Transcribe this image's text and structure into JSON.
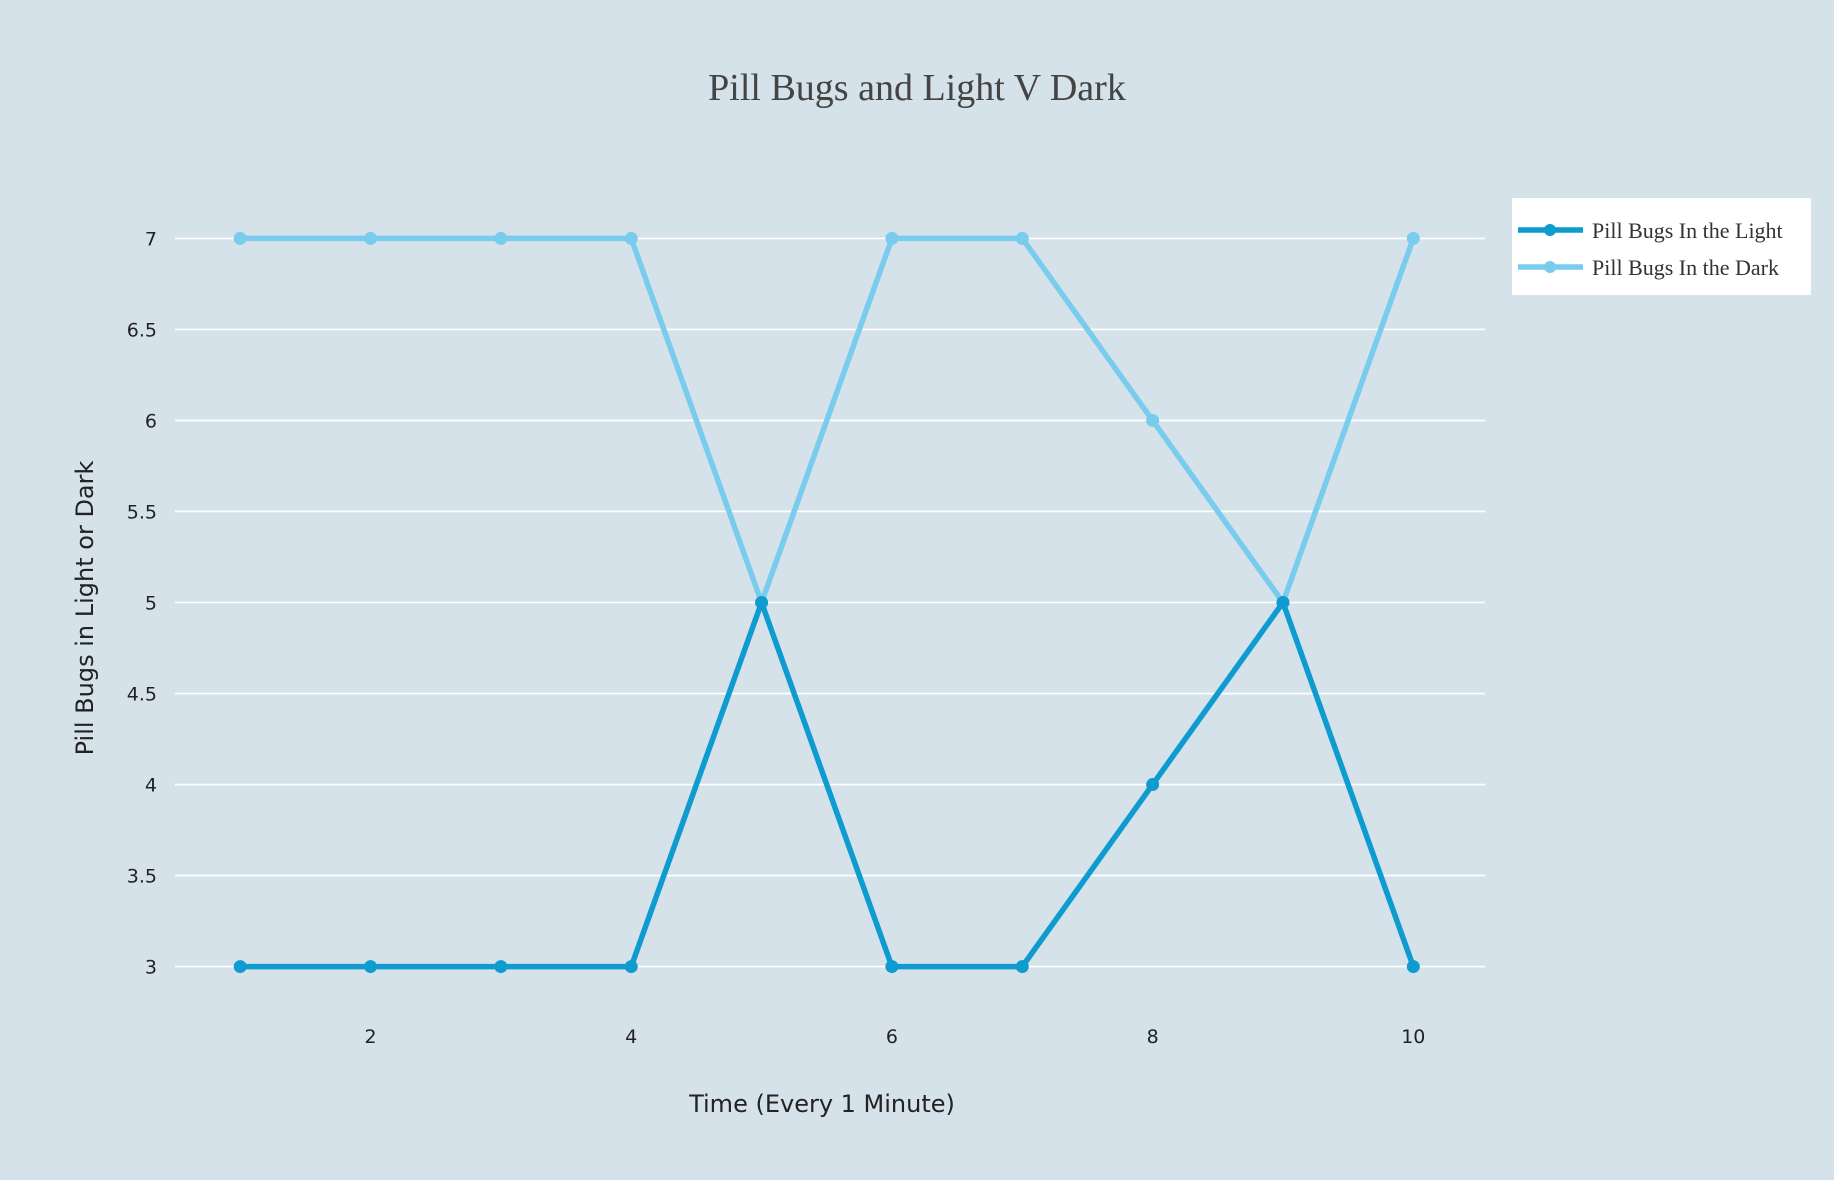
{
  "chart_data": {
    "type": "line",
    "title": "Pill Bugs and Light V Dark",
    "xlabel": "Time (Every 1 Minute)",
    "ylabel": "Pill Bugs in Light or Dark",
    "x": [
      1,
      2,
      3,
      4,
      5,
      6,
      7,
      8,
      9,
      10
    ],
    "xticks": [
      "2",
      "4",
      "6",
      "8",
      "10"
    ],
    "xtick_values": [
      2,
      4,
      6,
      8,
      10
    ],
    "yticks": [
      "3",
      "3.5",
      "4",
      "4.5",
      "5",
      "5.5",
      "6",
      "6.5",
      "7"
    ],
    "ytick_values": [
      3,
      3.5,
      4,
      4.5,
      5,
      5.5,
      6,
      6.5,
      7
    ],
    "xlim": [
      0.5,
      10.55
    ],
    "ylim": [
      2.8,
      7.2
    ],
    "grid": true,
    "legend_position": "top-right",
    "series": [
      {
        "name": "Pill Bugs In the Light",
        "color": "#0e9bd0",
        "values": [
          3,
          3,
          3,
          3,
          5,
          3,
          3,
          4,
          5,
          3
        ]
      },
      {
        "name": "Pill Bugs In the Dark",
        "color": "#79ccee",
        "values": [
          7,
          7,
          7,
          7,
          5,
          7,
          7,
          6,
          5,
          7
        ]
      }
    ],
    "background": "#d5e2ea",
    "legend_background": "#ffffff"
  }
}
